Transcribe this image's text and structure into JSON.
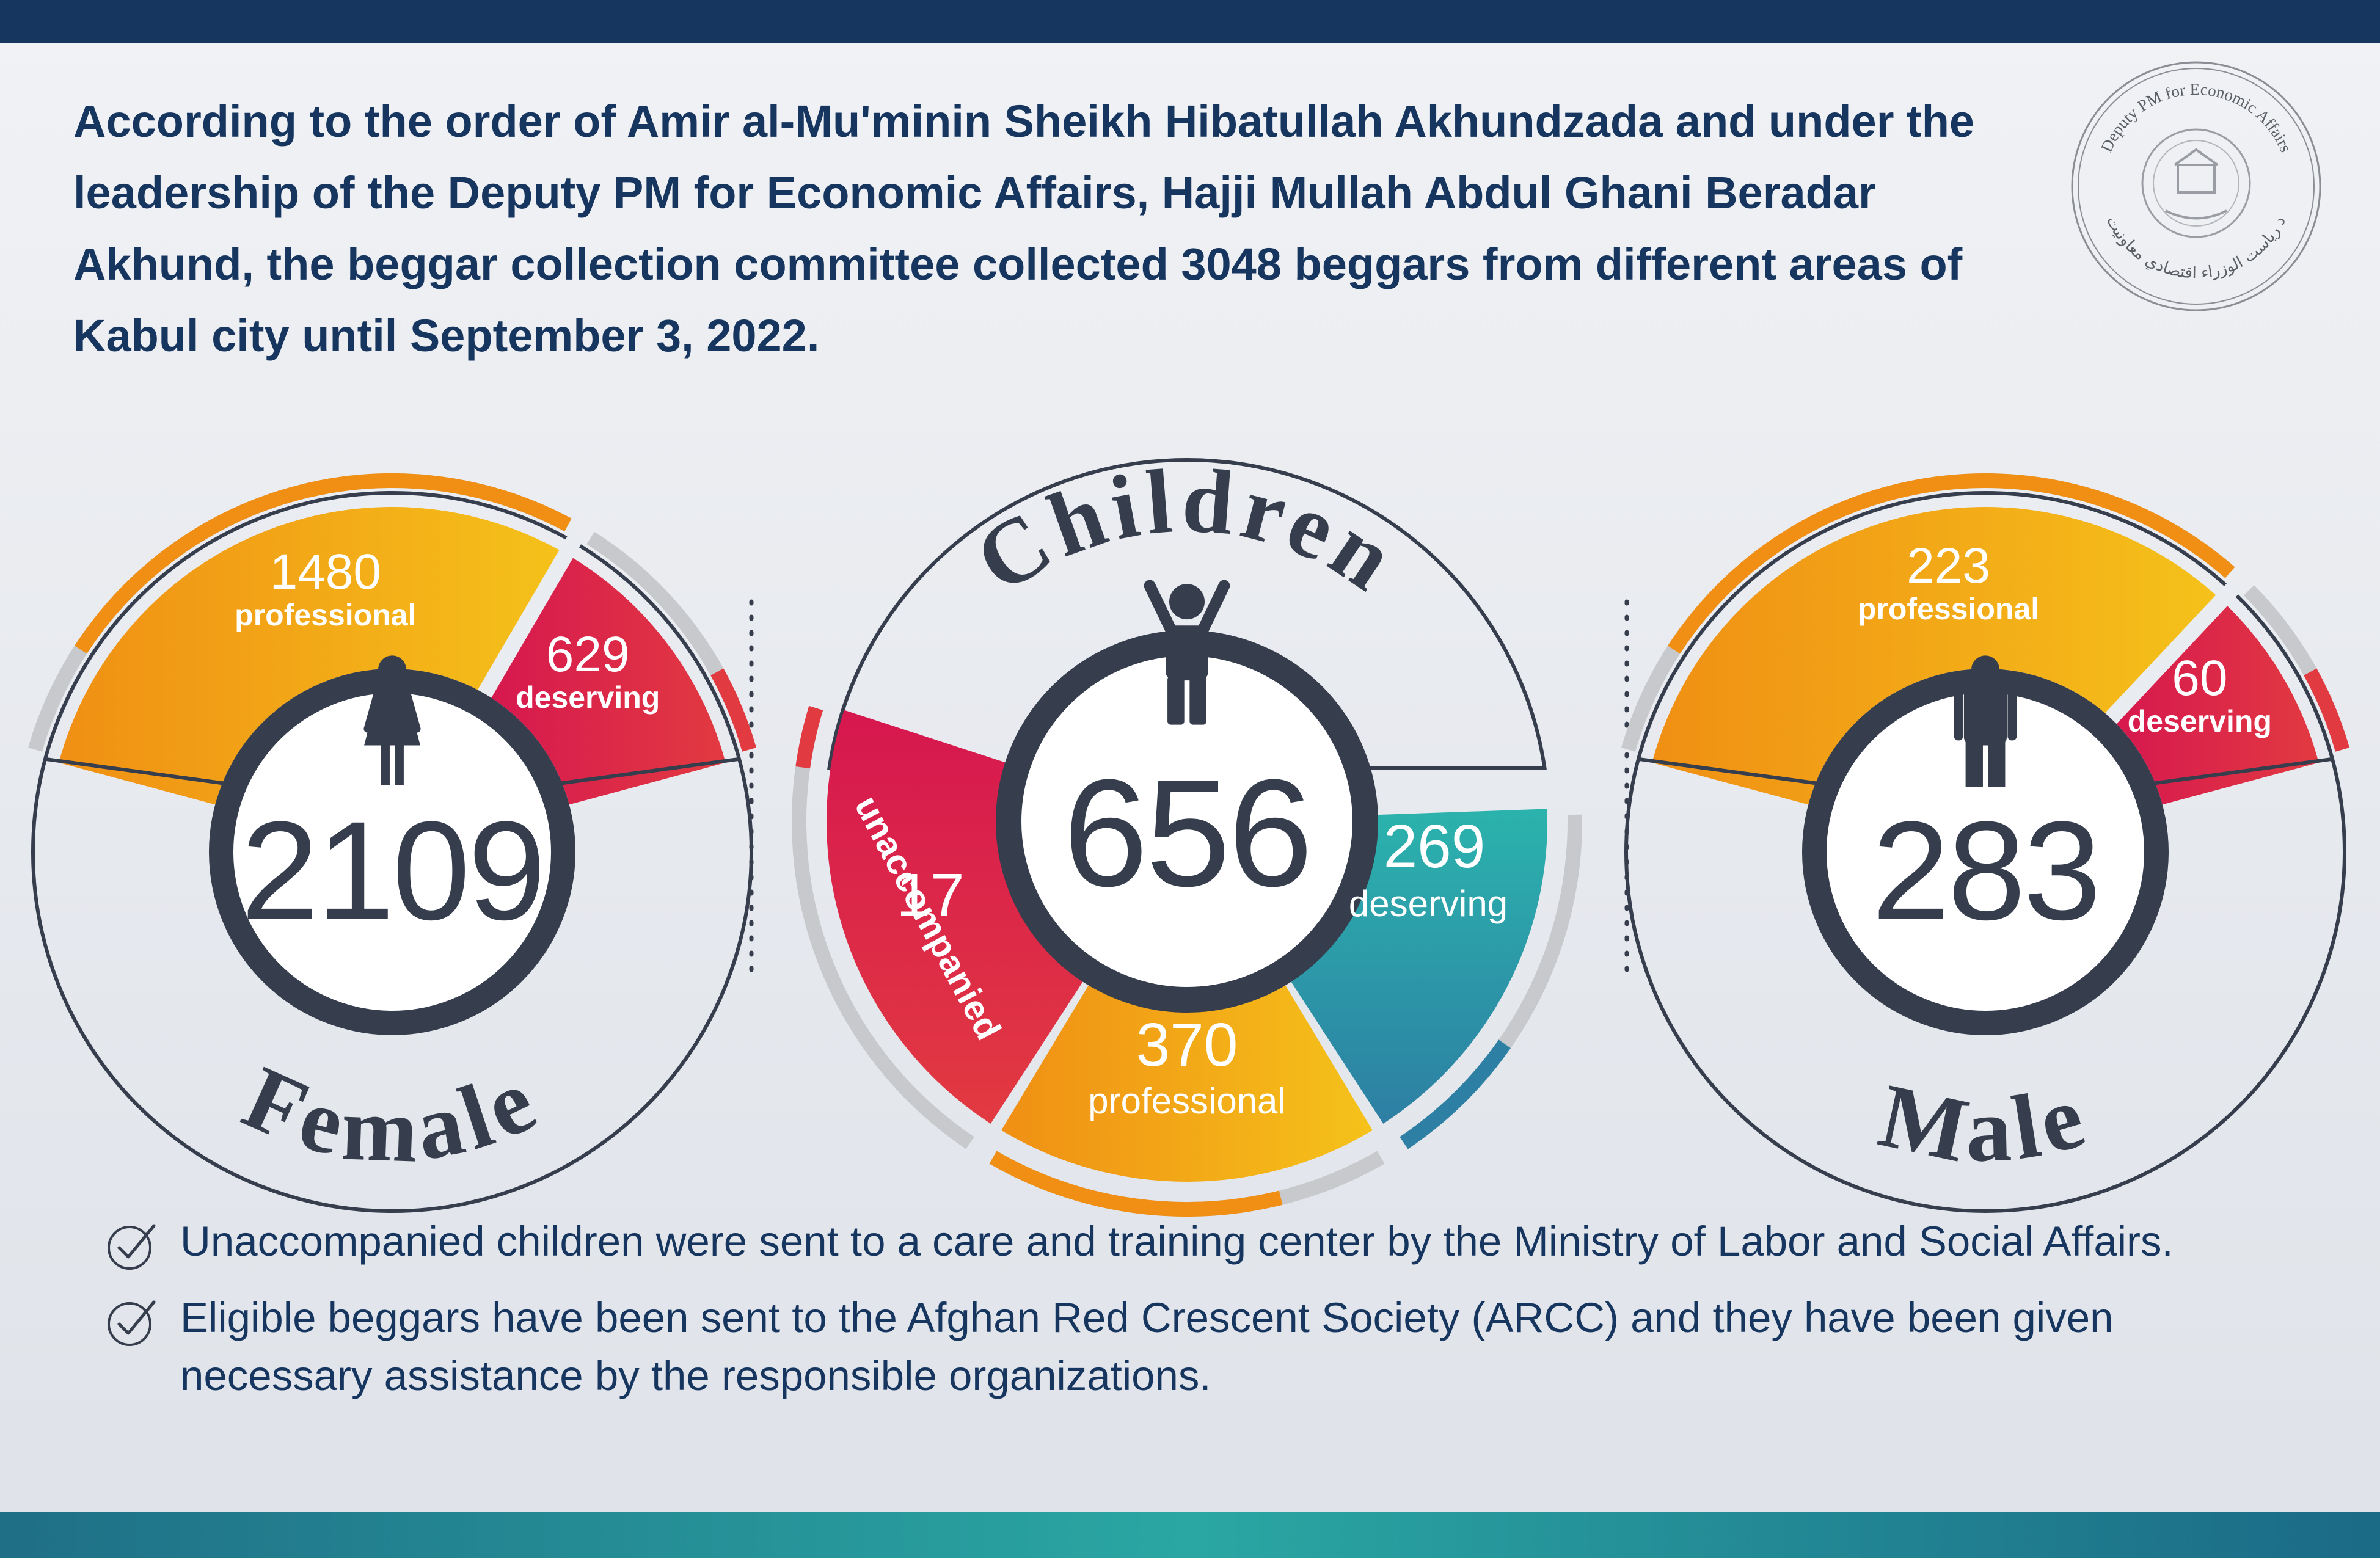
{
  "headline": "According to the order of Amir al-Mu'minin Sheikh Hibatullah Akhundzada and under the leadership of the Deputy PM for Economic Affairs, Hajji Mullah Abdul Ghani Beradar Akhund, the beggar collection committee collected 3048 beggars from different areas of Kabul city until September 3, 2022.",
  "seal": {
    "english_text": "Deputy PM for Economic Affairs",
    "pashto_text": "د ریاست الوزراء اقتصادي معاونیت"
  },
  "colors": {
    "navy": "#17365f",
    "dark": "#363d4d",
    "orange": "#f08f14",
    "yellow": "#f5c21a",
    "red": "#e23a41",
    "crimson": "#d6174f",
    "teal": "#2bb3ad",
    "blue": "#2d7fa3",
    "gray": "#c8c9cc"
  },
  "chart_data": [
    {
      "type": "pie",
      "title": "Female",
      "total": 2109,
      "slices": [
        {
          "label": "professional",
          "value": 1480
        },
        {
          "label": "deserving",
          "value": 629
        }
      ]
    },
    {
      "type": "pie",
      "title": "Children",
      "total": 656,
      "slices": [
        {
          "label": "unaccompanied",
          "value": 17
        },
        {
          "label": "professional",
          "value": 370
        },
        {
          "label": "deserving",
          "value": 269
        }
      ]
    },
    {
      "type": "pie",
      "title": "Male",
      "total": 283,
      "slices": [
        {
          "label": "professional",
          "value": 223
        },
        {
          "label": "deserving",
          "value": 60
        }
      ]
    }
  ],
  "notes": [
    "Unaccompanied children were sent to a care and training center by the Ministry of Labor and Social Affairs.",
    "Eligible beggars have been sent to the Afghan Red Crescent Society (ARCC) and they have been given necessary assistance by the responsible organizations."
  ]
}
